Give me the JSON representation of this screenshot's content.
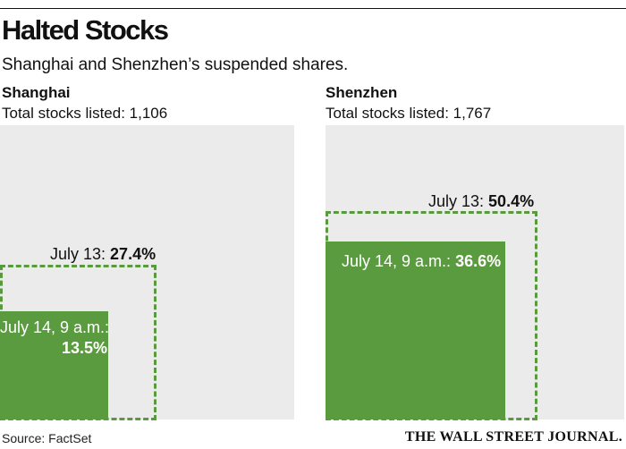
{
  "header": {
    "title": "Halted Stocks",
    "subtitle": "Shanghai and Shenzhen’s suspended shares."
  },
  "footer": {
    "source": "Source: FactSet",
    "brand": "THE WALL STREET JOURNAL."
  },
  "colors": {
    "background_box": "#ebebeb",
    "halted_fill": "#5b9b3f",
    "dashed_outline": "#5a9a3f"
  },
  "chart_data": [
    {
      "type": "area",
      "panel": "Shanghai",
      "total_label": "Total stocks listed: 1,106",
      "total_listed": 1106,
      "series": [
        {
          "label_prefix": "July 13: ",
          "value_label": "27.4%",
          "value": 27.4,
          "style": "dashed-outline"
        },
        {
          "label_prefix": "July 14, 9 a.m.:",
          "value_label": "13.5%",
          "value": 13.5,
          "style": "filled"
        }
      ]
    },
    {
      "type": "area",
      "panel": "Shenzhen",
      "total_label": "Total stocks listed: 1,767",
      "total_listed": 1767,
      "series": [
        {
          "label_prefix": "July 13: ",
          "value_label": "50.4%",
          "value": 50.4,
          "style": "dashed-outline"
        },
        {
          "label_prefix": "July 14, 9 a.m.: ",
          "value_label": "36.6%",
          "value": 36.6,
          "style": "filled"
        }
      ]
    }
  ]
}
